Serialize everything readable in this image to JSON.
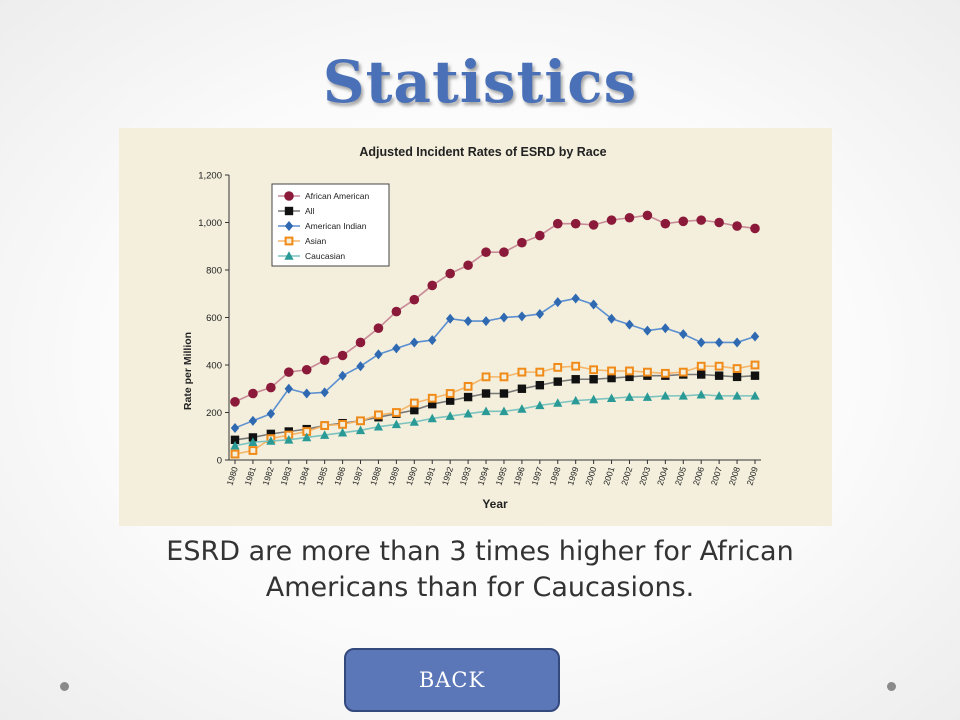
{
  "slide": {
    "title": "Statistics",
    "caption": "ESRD are more than 3 times higher for African Americans than for Caucasions.",
    "back_label": "BACK"
  },
  "chart_data": {
    "type": "line",
    "title": "Adjusted Incident Rates of ESRD by Race",
    "xlabel": "Year",
    "ylabel": "Rate per Million",
    "ylim": [
      0,
      1200
    ],
    "y_ticks": [
      "0",
      "200",
      "400",
      "600",
      "800",
      "1,000",
      "1,200"
    ],
    "legend_position": "top-left",
    "x": [
      "1980",
      "1981",
      "1982",
      "1983",
      "1984",
      "1985",
      "1986",
      "1987",
      "1988",
      "1989",
      "1990",
      "1991",
      "1992",
      "1993",
      "1994",
      "1995",
      "1996",
      "1997",
      "1998",
      "1999",
      "2000",
      "2001",
      "2002",
      "2003",
      "2004",
      "2005",
      "2006",
      "2007",
      "2008",
      "2009"
    ],
    "series": [
      {
        "name": "African American",
        "color": "#8b1a3a",
        "marker": "circle",
        "line": "#c98a98",
        "values": [
          245,
          280,
          305,
          370,
          380,
          420,
          440,
          495,
          555,
          625,
          675,
          735,
          785,
          820,
          875,
          875,
          915,
          945,
          995,
          995,
          990,
          1010,
          1020,
          1030,
          995,
          1005,
          1010,
          1000,
          985,
          975
        ]
      },
      {
        "name": "All",
        "color": "#111111",
        "marker": "square",
        "line": "#777777",
        "values": [
          85,
          95,
          110,
          120,
          130,
          145,
          155,
          165,
          180,
          195,
          210,
          235,
          250,
          265,
          280,
          280,
          300,
          315,
          330,
          340,
          340,
          345,
          350,
          355,
          355,
          360,
          360,
          355,
          350,
          355
        ]
      },
      {
        "name": "American Indian",
        "color": "#2f69b2",
        "marker": "diamond",
        "line": "#5b8fd0",
        "values": [
          135,
          165,
          195,
          300,
          280,
          285,
          355,
          395,
          445,
          470,
          495,
          505,
          595,
          585,
          585,
          600,
          605,
          615,
          665,
          680,
          655,
          595,
          570,
          545,
          555,
          530,
          495,
          495,
          495,
          520
        ]
      },
      {
        "name": "Asian",
        "color": "#f08a18",
        "marker": "open-square",
        "line": "#f5b66a",
        "values": [
          25,
          40,
          90,
          105,
          120,
          145,
          150,
          165,
          190,
          200,
          240,
          260,
          280,
          310,
          350,
          350,
          370,
          370,
          390,
          395,
          380,
          375,
          375,
          370,
          365,
          370,
          395,
          395,
          385,
          400
        ]
      },
      {
        "name": "Caucasian",
        "color": "#2a9a96",
        "marker": "triangle",
        "line": "#7cc3c0",
        "values": [
          60,
          75,
          80,
          85,
          95,
          105,
          115,
          125,
          140,
          150,
          160,
          175,
          185,
          195,
          205,
          205,
          215,
          230,
          240,
          250,
          255,
          260,
          265,
          265,
          270,
          270,
          275,
          270,
          270,
          270
        ]
      }
    ]
  }
}
